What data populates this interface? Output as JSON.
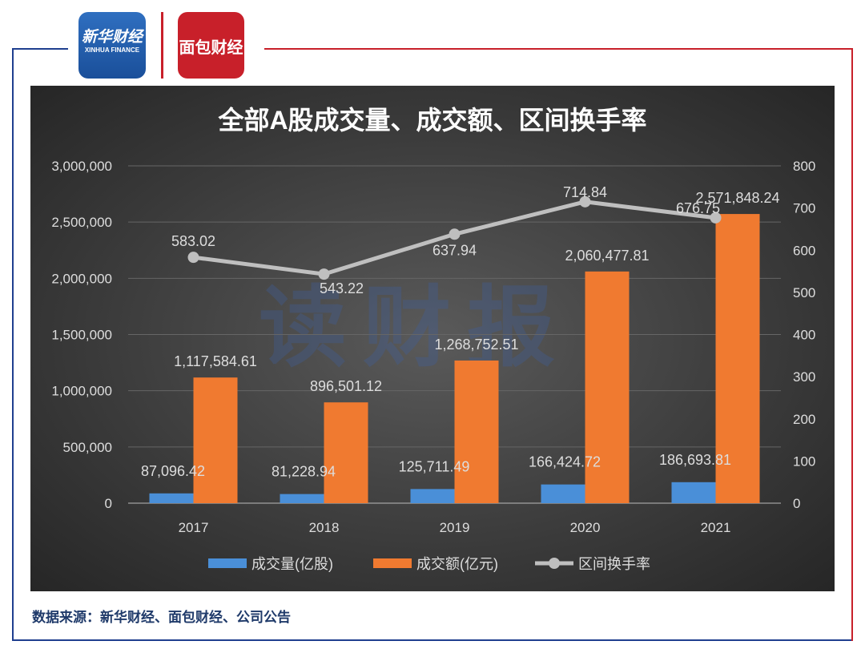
{
  "logos": {
    "xinhua": "新华财经",
    "xinhua_en": "XINHUA FINANCE",
    "mianbao": "面包财经"
  },
  "footer": {
    "source": "数据来源：新华财经、面包财经、公司公告"
  },
  "watermark": "读财报",
  "colors": {
    "volume": "#4a8fd8",
    "amount": "#f07a30",
    "turnover": "#bfbfbf",
    "background": "#3a3a3a",
    "frame_left": "#1f3f8f",
    "frame_right": "#c8202a"
  },
  "chart_data": {
    "type": "bar+line",
    "title": "全部A股成交量、成交额、区间换手率",
    "categories": [
      "2017",
      "2018",
      "2019",
      "2020",
      "2021"
    ],
    "series": [
      {
        "name": "成交量(亿股)",
        "type": "bar",
        "axis": "left",
        "values": [
          87096.42,
          81228.94,
          125711.49,
          166424.72,
          186693.81
        ],
        "labels": [
          "87,096.42",
          "81,228.94",
          "125,711.49",
          "166,424.72",
          "186,693.81"
        ]
      },
      {
        "name": "成交额(亿元)",
        "type": "bar",
        "axis": "left",
        "values": [
          1117584.61,
          896501.12,
          1268752.51,
          2060477.81,
          2571848.24
        ],
        "labels": [
          "1,117,584.61",
          "896,501.12",
          "1,268,752.51",
          "2,060,477.81",
          "2,571,848.24"
        ]
      },
      {
        "name": "区间换手率",
        "type": "line",
        "axis": "right",
        "values": [
          583.02,
          543.22,
          637.94,
          714.84,
          676.75
        ],
        "labels": [
          "583.02",
          "543.22",
          "637.94",
          "714.84",
          "676.75"
        ]
      }
    ],
    "left_axis": {
      "range": [
        0,
        3000000
      ],
      "ticks": [
        "0",
        "500,000",
        "1,000,000",
        "1,500,000",
        "2,000,000",
        "2,500,000",
        "3,000,000"
      ]
    },
    "right_axis": {
      "range": [
        0,
        800
      ],
      "ticks": [
        "0",
        "100",
        "200",
        "300",
        "400",
        "500",
        "600",
        "700",
        "800"
      ]
    },
    "grid": true,
    "legend": "bottom"
  }
}
